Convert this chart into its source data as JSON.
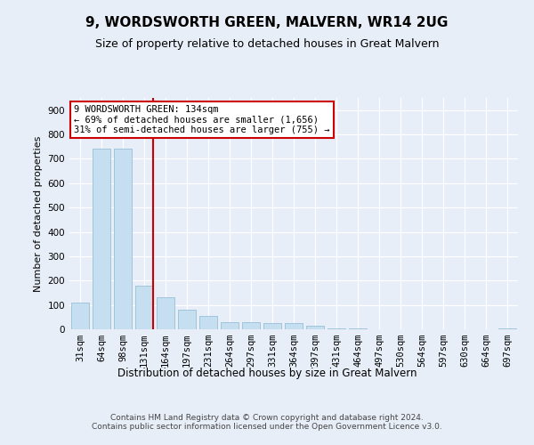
{
  "title": "9, WORDSWORTH GREEN, MALVERN, WR14 2UG",
  "subtitle": "Size of property relative to detached houses in Great Malvern",
  "xlabel": "Distribution of detached houses by size in Great Malvern",
  "ylabel": "Number of detached properties",
  "categories": [
    "31sqm",
    "64sqm",
    "98sqm",
    "131sqm",
    "164sqm",
    "197sqm",
    "231sqm",
    "264sqm",
    "297sqm",
    "331sqm",
    "364sqm",
    "397sqm",
    "431sqm",
    "464sqm",
    "497sqm",
    "530sqm",
    "564sqm",
    "597sqm",
    "630sqm",
    "664sqm",
    "697sqm"
  ],
  "values": [
    110,
    740,
    740,
    180,
    130,
    80,
    55,
    30,
    28,
    27,
    27,
    15,
    5,
    3,
    0,
    0,
    0,
    0,
    0,
    0,
    3
  ],
  "bar_color": "#c5dff0",
  "bar_edge_color": "#89b8d4",
  "bar_linewidth": 0.5,
  "highlight_index": 3,
  "vline_color": "#cc0000",
  "vline_x": 3.4,
  "annotation_text": "9 WORDSWORTH GREEN: 134sqm\n← 69% of detached houses are smaller (1,656)\n31% of semi-detached houses are larger (755) →",
  "annotation_box_color": "#ffffff",
  "annotation_box_edge": "#cc0000",
  "ylim": [
    0,
    950
  ],
  "yticks": [
    0,
    100,
    200,
    300,
    400,
    500,
    600,
    700,
    800,
    900
  ],
  "bg_color": "#e8eef8",
  "plot_bg_color": "#e8eef8",
  "footer": "Contains HM Land Registry data © Crown copyright and database right 2024.\nContains public sector information licensed under the Open Government Licence v3.0.",
  "title_fontsize": 11,
  "subtitle_fontsize": 9,
  "xlabel_fontsize": 8.5,
  "ylabel_fontsize": 8,
  "tick_fontsize": 7.5,
  "footer_fontsize": 6.5,
  "annotation_fontsize": 7.5
}
